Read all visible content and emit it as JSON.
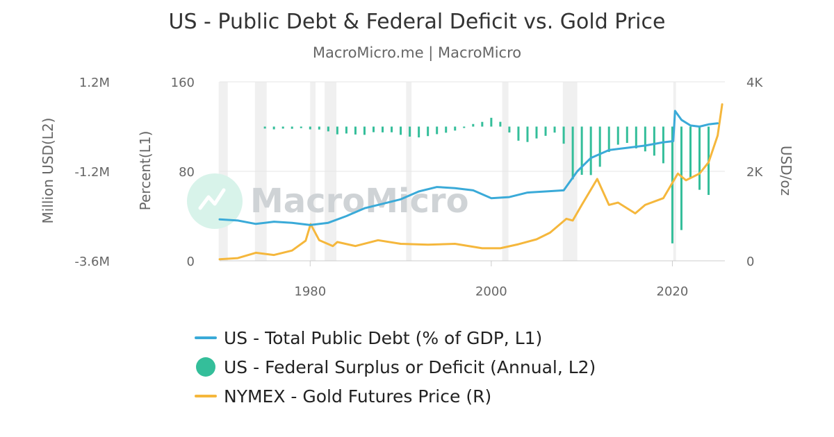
{
  "chart_data": {
    "type": "line",
    "title": "US - Public Debt & Federal Deficit vs. Gold Price",
    "subtitle": "MacroMicro.me | MacroMicro",
    "watermark": "MacroMicro",
    "x_ticks": [
      "1980",
      "2000",
      "2020"
    ],
    "xlim": [
      1970,
      2025.8
    ],
    "axes": {
      "l2": {
        "title": "Million USD(L2)",
        "ticks": [
          "1.2M",
          "-1.2M",
          "-3.6M"
        ],
        "ylim": [
          -3600000,
          1200000
        ]
      },
      "l1": {
        "title": "Percent(L1)",
        "ticks": [
          "160",
          "80",
          "0"
        ],
        "ylim": [
          0,
          160
        ]
      },
      "r": {
        "title": "USD/oz",
        "ticks": [
          "4K",
          "2K",
          "0"
        ],
        "ylim": [
          0,
          4000
        ]
      }
    },
    "grid": true,
    "legend_position": "bottom",
    "recession_bands": [
      [
        1969.9,
        1970.9
      ],
      [
        1973.9,
        1975.2
      ],
      [
        1980.0,
        1980.6
      ],
      [
        1981.6,
        1982.9
      ],
      [
        1990.6,
        1991.2
      ],
      [
        2001.2,
        2001.9
      ],
      [
        2007.9,
        2009.5
      ],
      [
        2020.1,
        2020.4
      ]
    ],
    "series": [
      {
        "name": "US - Total Public Debt (% of GDP, L1)",
        "axis": "l1",
        "type": "line",
        "color": "#3aaad8",
        "x": [
          1970,
          1972,
          1974,
          1976,
          1978,
          1980,
          1982,
          1984,
          1986,
          1988,
          1990,
          1992,
          1994,
          1996,
          1998,
          2000,
          2002,
          2004,
          2006,
          2008,
          2009.5,
          2011,
          2013,
          2015,
          2017,
          2019,
          2020.1,
          2020.3,
          2021,
          2022,
          2023,
          2024,
          2025
        ],
        "values": [
          37,
          36,
          33,
          35,
          34,
          32,
          34,
          40,
          47,
          51,
          55,
          62,
          66,
          65,
          63,
          56,
          57,
          61,
          62,
          63,
          80,
          92,
          99,
          101,
          103,
          106,
          107,
          134,
          126,
          121,
          120,
          122,
          123
        ]
      },
      {
        "name": "US - Federal Surplus or Deficit (Annual, L2)",
        "axis": "l2",
        "type": "column",
        "color": "#34be9a",
        "x": [
          1975,
          1976,
          1977,
          1978,
          1979,
          1980,
          1981,
          1982,
          1983,
          1984,
          1985,
          1986,
          1987,
          1988,
          1989,
          1990,
          1991,
          1992,
          1993,
          1994,
          1995,
          1996,
          1997,
          1998,
          1999,
          2000,
          2001,
          2002,
          2003,
          2004,
          2005,
          2006,
          2007,
          2008,
          2009,
          2010,
          2011,
          2012,
          2013,
          2014,
          2015,
          2016,
          2017,
          2018,
          2019,
          2020,
          2021,
          2022,
          2023,
          2024
        ],
        "values": [
          -53000,
          -74000,
          -54000,
          -59000,
          -41000,
          -74000,
          -79000,
          -128000,
          -208000,
          -185000,
          -212000,
          -221000,
          -150000,
          -155000,
          -153000,
          -221000,
          -269000,
          -290000,
          -255000,
          -203000,
          -164000,
          -107000,
          -22000,
          69000,
          126000,
          236000,
          128000,
          -158000,
          -378000,
          -413000,
          -318000,
          -248000,
          -161000,
          -459000,
          -1413000,
          -1294000,
          -1300000,
          -1077000,
          -680000,
          -485000,
          -438000,
          -585000,
          -665000,
          -779000,
          -984000,
          -3132000,
          -2775000,
          -1376000,
          -1695000,
          -1833000
        ]
      },
      {
        "name": "NYMEX - Gold Futures Price (R)",
        "axis": "r",
        "type": "line",
        "color": "#f5b73c",
        "x": [
          1970,
          1972,
          1974,
          1976,
          1978,
          1979.5,
          1980.05,
          1981,
          1982.5,
          1983,
          1985,
          1987.5,
          1990,
          1993,
          1996,
          1999,
          2001,
          2003,
          2005,
          2006.5,
          2008.3,
          2009,
          2010,
          2011.7,
          2013,
          2014,
          2015.9,
          2017,
          2019,
          2020.6,
          2021.5,
          2022,
          2023,
          2024,
          2025,
          2025.5
        ],
        "values": [
          36,
          60,
          180,
          130,
          230,
          450,
          820,
          460,
          330,
          420,
          330,
          460,
          380,
          360,
          380,
          280,
          280,
          370,
          480,
          630,
          940,
          900,
          1250,
          1830,
          1250,
          1300,
          1060,
          1250,
          1400,
          1950,
          1800,
          1850,
          1950,
          2200,
          2800,
          3500
        ]
      }
    ]
  }
}
